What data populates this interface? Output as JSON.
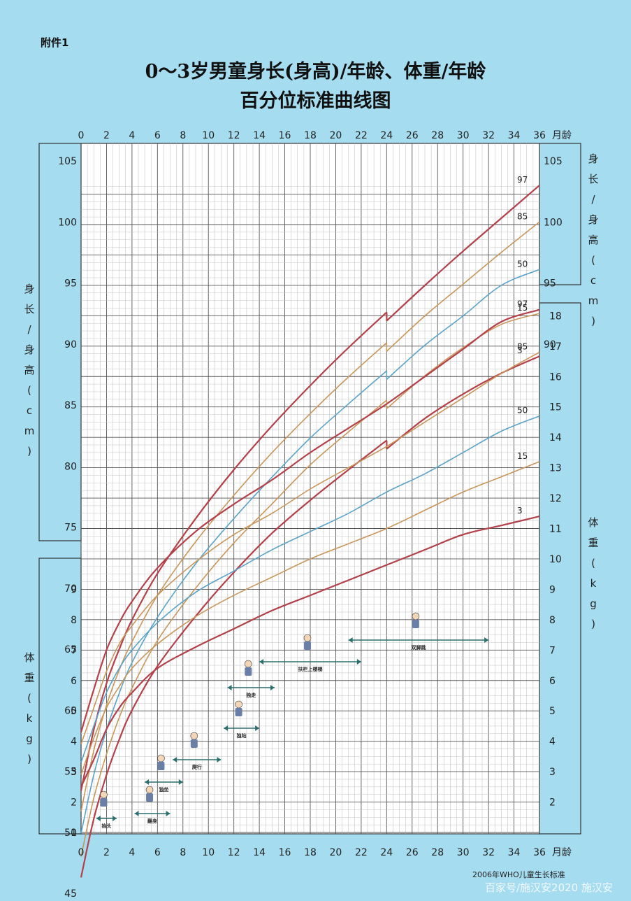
{
  "header": {
    "attachment": "附件1",
    "title_line1": "0～3岁男童身长(身高)/年龄、体重/年龄",
    "title_line2": "百分位标准曲线图"
  },
  "footer": {
    "source": "2006年WHO儿童生长标准",
    "watermark": "百家号/施汉安2020 施汉安"
  },
  "chart_data": {
    "type": "line",
    "x_axis": {
      "unit_label": "月龄",
      "range": [
        0,
        36
      ],
      "ticks": [
        0,
        2,
        4,
        6,
        8,
        10,
        12,
        14,
        16,
        18,
        20,
        22,
        24,
        26,
        28,
        30,
        32,
        34,
        36
      ]
    },
    "height_axis": {
      "left_label": "身长/身高(cm)",
      "right_label": "身长/身高(cm)",
      "range": [
        43,
        107
      ],
      "left_ticks": [
        45,
        50,
        55,
        60,
        65,
        70,
        75,
        80,
        85,
        90,
        95,
        100,
        105
      ],
      "right_ticks": [
        90,
        95,
        100,
        105
      ]
    },
    "weight_axis": {
      "left_label": "体重(kg)",
      "right_label": "体重(kg)",
      "range": [
        1,
        18.5
      ],
      "left_ticks": [
        1,
        2,
        3,
        4,
        5,
        6,
        7,
        8,
        9
      ],
      "right_ticks": [
        2,
        3,
        4,
        5,
        6,
        7,
        8,
        9,
        10,
        11,
        12,
        13,
        14,
        15,
        16,
        17,
        18
      ]
    },
    "height_series": [
      {
        "name": "97",
        "color": "#b4404a",
        "x": [
          0,
          1,
          2,
          3,
          4,
          6,
          9,
          12,
          15,
          18,
          21,
          24,
          24,
          27,
          30,
          33,
          36
        ],
        "y": [
          53.4,
          58.4,
          62.2,
          65.0,
          67.4,
          71.2,
          75.7,
          79.7,
          83.3,
          86.6,
          89.7,
          92.6,
          91.9,
          94.8,
          97.6,
          100.3,
          103.0
        ]
      },
      {
        "name": "85",
        "color": "#c9965a",
        "x": [
          0,
          1,
          2,
          3,
          4,
          6,
          9,
          12,
          15,
          18,
          21,
          24,
          24,
          27,
          30,
          33,
          36
        ],
        "y": [
          51.7,
          56.7,
          60.4,
          63.3,
          65.6,
          69.4,
          73.8,
          77.6,
          81.1,
          84.3,
          87.3,
          90.1,
          89.4,
          92.3,
          94.9,
          97.5,
          100.0
        ]
      },
      {
        "name": "50",
        "color": "#5aa3c8",
        "x": [
          0,
          1,
          2,
          3,
          4,
          6,
          9,
          12,
          15,
          18,
          21,
          24,
          24,
          27,
          30,
          33,
          36
        ],
        "y": [
          49.9,
          54.7,
          58.4,
          61.4,
          63.9,
          67.6,
          72.0,
          75.7,
          79.1,
          82.3,
          85.1,
          87.8,
          87.1,
          89.9,
          92.3,
          94.8,
          96.1
        ]
      },
      {
        "name": "15",
        "color": "#c9965a",
        "x": [
          0,
          1,
          2,
          3,
          4,
          6,
          9,
          12,
          15,
          18,
          21,
          24,
          24,
          27,
          30,
          33,
          36
        ],
        "y": [
          48.0,
          52.8,
          56.4,
          59.4,
          61.8,
          65.7,
          70.0,
          73.7,
          76.9,
          80.1,
          82.8,
          85.4,
          84.7,
          87.4,
          89.7,
          91.6,
          92.5
        ]
      },
      {
        "name": "3",
        "color": "#b4404a",
        "x": [
          0,
          1,
          2,
          3,
          4,
          6,
          9,
          12,
          15,
          18,
          21,
          24,
          24,
          27,
          30,
          33,
          36
        ],
        "y": [
          46.3,
          51.1,
          54.7,
          57.6,
          60.0,
          63.6,
          67.7,
          71.3,
          74.5,
          77.2,
          79.7,
          82.1,
          81.4,
          83.9,
          85.9,
          87.6,
          89.0
        ]
      }
    ],
    "weight_series": [
      {
        "name": "97",
        "color": "#b4404a",
        "x": [
          0,
          1,
          2,
          3,
          4,
          6,
          9,
          12,
          15,
          18,
          21,
          24,
          27,
          30,
          33,
          36
        ],
        "y": [
          4.3,
          5.7,
          7.0,
          7.9,
          8.6,
          9.7,
          10.9,
          11.8,
          12.6,
          13.5,
          14.3,
          15.1,
          16.0,
          16.9,
          17.8,
          18.2
        ]
      },
      {
        "name": "85",
        "color": "#c9965a",
        "x": [
          0,
          1,
          2,
          3,
          4,
          6,
          9,
          12,
          15,
          18,
          21,
          24,
          27,
          30,
          33,
          36
        ],
        "y": [
          3.9,
          5.1,
          6.3,
          7.2,
          7.8,
          8.8,
          9.9,
          10.8,
          11.5,
          12.3,
          13.0,
          13.7,
          14.5,
          15.3,
          16.1,
          16.8
        ]
      },
      {
        "name": "50",
        "color": "#5aa3c8",
        "x": [
          0,
          1,
          2,
          3,
          4,
          6,
          9,
          12,
          15,
          18,
          21,
          24,
          27,
          30,
          33,
          36
        ],
        "y": [
          3.3,
          4.5,
          5.6,
          6.4,
          7.0,
          7.9,
          8.9,
          9.6,
          10.3,
          10.9,
          11.5,
          12.2,
          12.8,
          13.5,
          14.2,
          14.7
        ]
      },
      {
        "name": "15",
        "color": "#c9965a",
        "x": [
          0,
          1,
          2,
          3,
          4,
          6,
          9,
          12,
          15,
          18,
          21,
          24,
          27,
          30,
          33,
          36
        ],
        "y": [
          2.9,
          4.1,
          5.1,
          5.8,
          6.4,
          7.2,
          8.1,
          8.8,
          9.4,
          10.0,
          10.5,
          11.0,
          11.6,
          12.2,
          12.7,
          13.2
        ]
      },
      {
        "name": "3",
        "color": "#b4404a",
        "x": [
          0,
          1,
          2,
          3,
          4,
          6,
          9,
          12,
          15,
          18,
          21,
          24,
          27,
          30,
          33,
          36
        ],
        "y": [
          2.5,
          3.4,
          4.4,
          5.1,
          5.6,
          6.4,
          7.1,
          7.7,
          8.3,
          8.8,
          9.3,
          9.8,
          10.3,
          10.8,
          11.1,
          11.4
        ]
      }
    ],
    "milestones": [
      {
        "label": "抬头",
        "from": 1.2,
        "to": 2.8
      },
      {
        "label": "翻身",
        "from": 4.2,
        "to": 7.0
      },
      {
        "label": "独坐",
        "from": 5.0,
        "to": 8.0
      },
      {
        "label": "爬行",
        "from": 7.2,
        "to": 11.0
      },
      {
        "label": "独站",
        "from": 11.2,
        "to": 14.0
      },
      {
        "label": "独走",
        "from": 11.5,
        "to": 15.2
      },
      {
        "label": "扶栏上楼梯",
        "from": 14.0,
        "to": 22.0
      },
      {
        "label": "双脚跳",
        "from": 21.0,
        "to": 32.0
      }
    ]
  }
}
